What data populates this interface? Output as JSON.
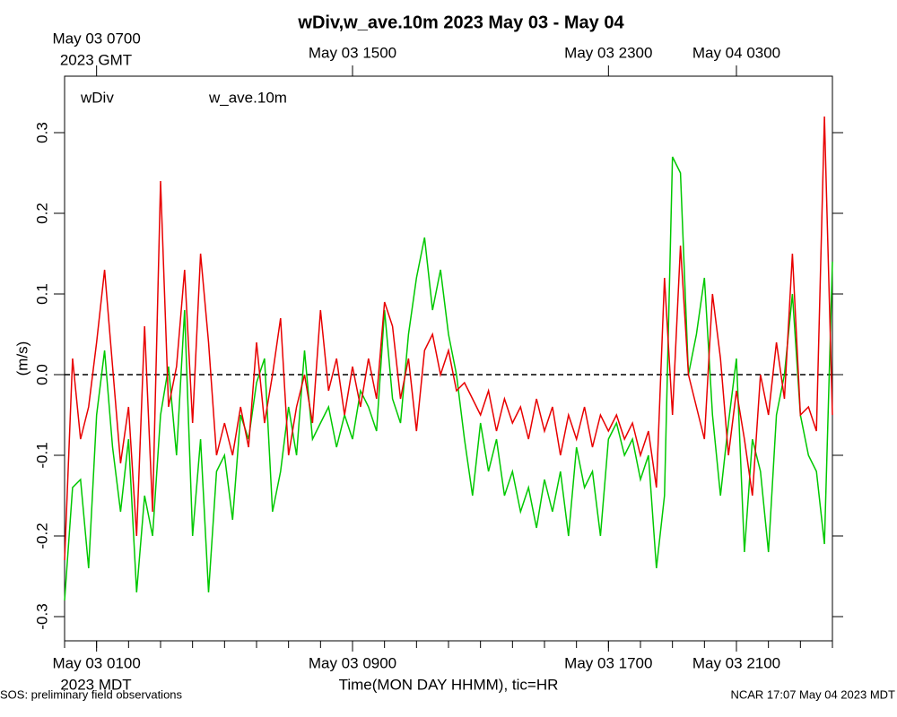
{
  "chart_data": {
    "type": "line",
    "title": "wDiv,w_ave.10m 2023 May 03 - May 04",
    "y_label": "(m/s)",
    "x_label": "Time(MON DAY HHMM), tic=HR",
    "x_sublabel": "2023 MDT",
    "x2_sublabel": "2023 GMT",
    "footer_left": "SOS: preliminary field observations",
    "footer_right": "NCAR 17:07 May 04 2023 MDT",
    "xlim": [
      0,
      24
    ],
    "ylim": [
      -0.33,
      0.37
    ],
    "yticks": [
      -0.3,
      -0.2,
      -0.1,
      {
        "value": 0,
        "label": "0.0"
      },
      0.1,
      0.2,
      0.3
    ],
    "xticks": [
      {
        "value": 1,
        "label": "May 03 0100"
      },
      {
        "value": 9,
        "label": "May 03 0900"
      },
      {
        "value": 17,
        "label": "May 03 1700"
      },
      {
        "value": 21,
        "label": "May 03 2100"
      }
    ],
    "x2ticks": [
      {
        "value": 1,
        "label": "May 03 0700"
      },
      {
        "value": 9,
        "label": "May 03 1500"
      },
      {
        "value": 17,
        "label": "May 03 2300"
      },
      {
        "value": 21,
        "label": "May 04 0300"
      }
    ],
    "xminor_ticks": [
      0,
      1,
      2,
      3,
      4,
      5,
      6,
      7,
      8,
      9,
      10,
      11,
      12,
      13,
      14,
      15,
      16,
      17,
      18,
      19,
      20,
      21,
      22,
      23,
      24
    ],
    "reference_line": 0,
    "x": [
      0,
      0.25,
      0.5,
      0.75,
      1,
      1.25,
      1.5,
      1.75,
      2,
      2.25,
      2.5,
      2.75,
      3,
      3.25,
      3.5,
      3.75,
      4,
      4.25,
      4.5,
      4.75,
      5,
      5.25,
      5.5,
      5.75,
      6,
      6.25,
      6.5,
      6.75,
      7,
      7.25,
      7.5,
      7.75,
      8,
      8.25,
      8.5,
      8.75,
      9,
      9.25,
      9.5,
      9.75,
      10,
      10.25,
      10.5,
      10.75,
      11,
      11.25,
      11.5,
      11.75,
      12,
      12.25,
      12.5,
      12.75,
      13,
      13.25,
      13.5,
      13.75,
      14,
      14.25,
      14.5,
      14.75,
      15,
      15.25,
      15.5,
      15.75,
      16,
      16.25,
      16.5,
      16.75,
      17,
      17.25,
      17.5,
      17.75,
      18,
      18.25,
      18.5,
      18.75,
      19,
      19.25,
      19.5,
      19.75,
      20,
      20.25,
      20.5,
      20.75,
      21,
      21.25,
      21.5,
      21.75,
      22,
      22.25,
      22.5,
      22.75,
      23,
      23.25,
      23.5,
      23.75,
      24
    ],
    "series": [
      {
        "name": "w_ave.10m",
        "color": "#00c800",
        "values": [
          -0.28,
          -0.14,
          -0.13,
          -0.24,
          -0.05,
          0.03,
          -0.09,
          -0.17,
          -0.08,
          -0.27,
          -0.15,
          -0.2,
          -0.05,
          0.01,
          -0.1,
          0.08,
          -0.2,
          -0.08,
          -0.27,
          -0.12,
          -0.1,
          -0.18,
          -0.05,
          -0.08,
          -0.01,
          0.02,
          -0.17,
          -0.12,
          -0.04,
          -0.1,
          0.03,
          -0.08,
          -0.06,
          -0.04,
          -0.09,
          -0.05,
          -0.08,
          -0.02,
          -0.04,
          -0.07,
          0.08,
          -0.03,
          -0.06,
          0.05,
          0.12,
          0.17,
          0.08,
          0.13,
          0.05,
          0.0,
          -0.08,
          -0.15,
          -0.06,
          -0.12,
          -0.08,
          -0.15,
          -0.12,
          -0.17,
          -0.14,
          -0.19,
          -0.13,
          -0.17,
          -0.12,
          -0.2,
          -0.09,
          -0.14,
          -0.12,
          -0.2,
          -0.08,
          -0.06,
          -0.1,
          -0.08,
          -0.13,
          -0.1,
          -0.24,
          -0.15,
          0.27,
          0.25,
          0.0,
          0.05,
          0.12,
          -0.05,
          -0.15,
          -0.06,
          0.02,
          -0.22,
          -0.08,
          -0.12,
          -0.22,
          -0.05,
          0.0,
          0.1,
          -0.05,
          -0.1,
          -0.12,
          -0.21,
          0.14
        ]
      },
      {
        "name": "wDiv",
        "color": "#e80000",
        "values": [
          -0.23,
          0.02,
          -0.08,
          -0.04,
          0.04,
          0.13,
          0.01,
          -0.11,
          -0.04,
          -0.2,
          0.06,
          -0.17,
          0.24,
          -0.04,
          0.01,
          0.13,
          -0.06,
          0.15,
          0.04,
          -0.1,
          -0.06,
          -0.1,
          -0.04,
          -0.09,
          0.04,
          -0.06,
          0.0,
          0.07,
          -0.1,
          -0.04,
          0.0,
          -0.06,
          0.08,
          -0.02,
          0.02,
          -0.05,
          0.01,
          -0.04,
          0.02,
          -0.03,
          0.09,
          0.06,
          -0.03,
          0.02,
          -0.07,
          0.03,
          0.05,
          0.0,
          0.03,
          -0.02,
          -0.01,
          -0.03,
          -0.05,
          -0.02,
          -0.07,
          -0.03,
          -0.06,
          -0.04,
          -0.08,
          -0.03,
          -0.07,
          -0.04,
          -0.1,
          -0.05,
          -0.08,
          -0.04,
          -0.09,
          -0.05,
          -0.07,
          -0.05,
          -0.08,
          -0.06,
          -0.1,
          -0.07,
          -0.14,
          0.12,
          -0.05,
          0.16,
          0.0,
          -0.04,
          -0.08,
          0.1,
          0.02,
          -0.1,
          -0.02,
          -0.08,
          -0.15,
          0.0,
          -0.05,
          0.04,
          -0.03,
          0.15,
          -0.05,
          -0.04,
          -0.07,
          0.32,
          -0.05
        ]
      }
    ]
  }
}
